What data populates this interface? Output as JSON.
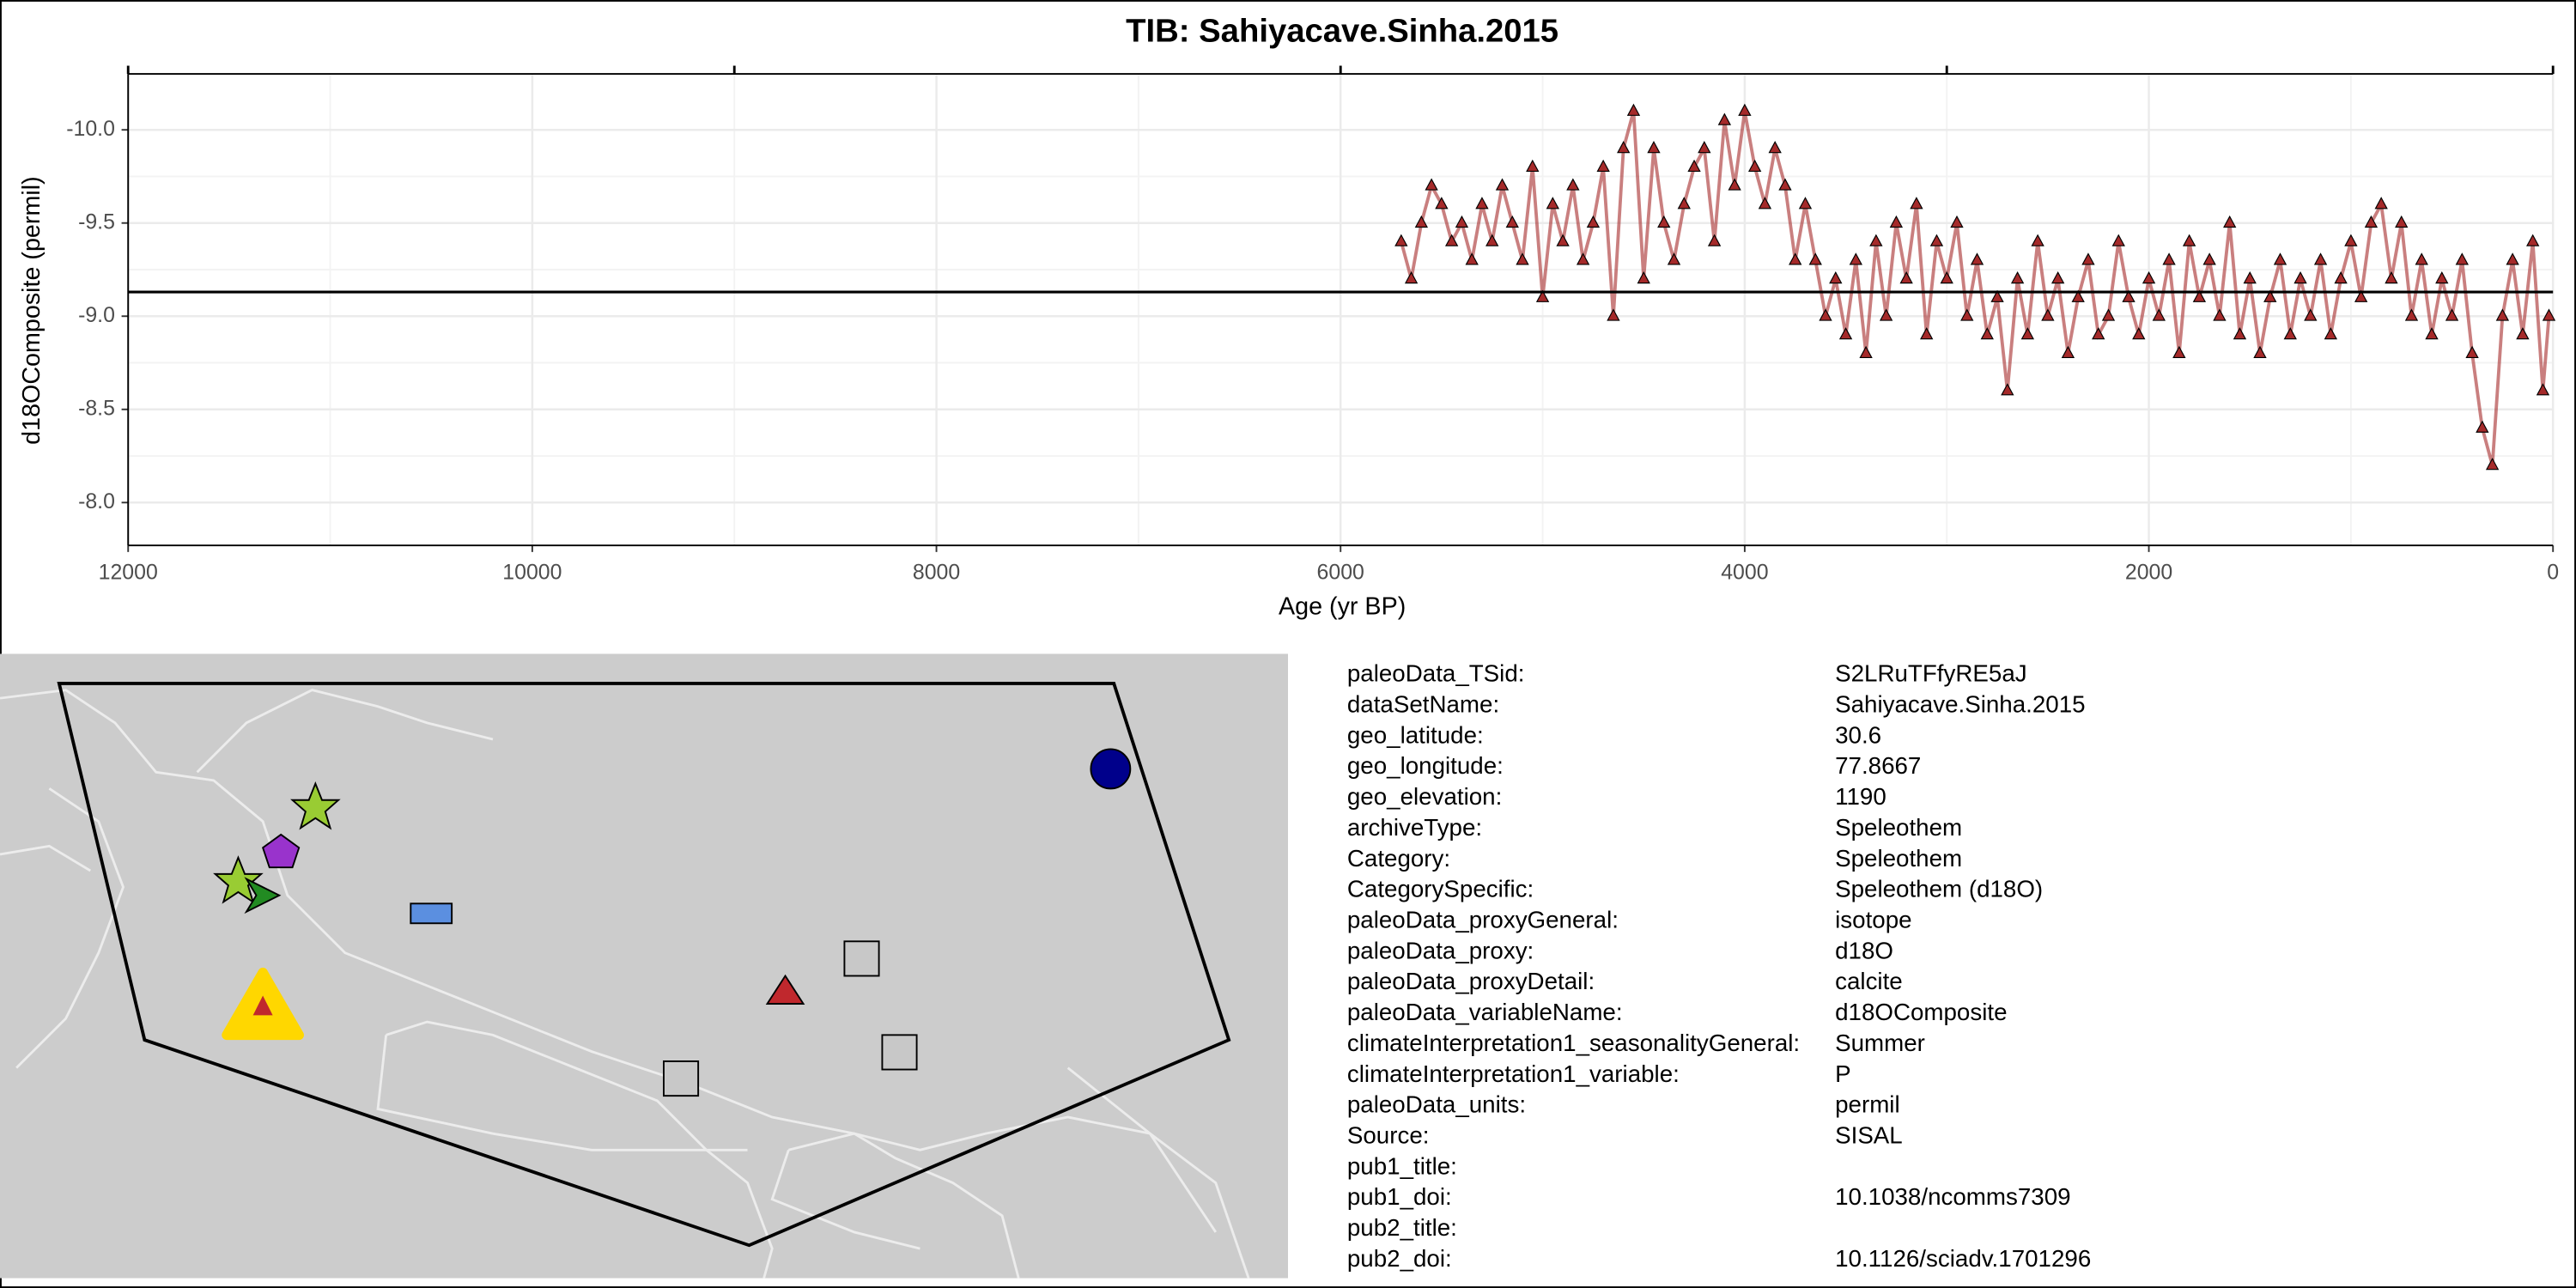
{
  "chart_data": {
    "type": "line",
    "title": "TIB: Sahiyacave.Sinha.2015",
    "x_label": "Age (yr BP)",
    "y_label": "d18OComposite (permil)",
    "xlim": [
      12000,
      0
    ],
    "xticks": [
      12000,
      10000,
      8000,
      6000,
      4000,
      2000,
      0
    ],
    "xticks_minor": [
      11000,
      9000,
      7000,
      5000,
      3000,
      1000
    ],
    "top_xticks": [
      12000,
      9000,
      6000,
      3000,
      0
    ],
    "ylim": [
      -7.77,
      -10.3
    ],
    "yticks": [
      {
        "value": -10,
        "label": "-10.0"
      },
      -9.5,
      {
        "value": -9,
        "label": "-9.0"
      },
      -8.5,
      {
        "value": -8,
        "label": "-8.0"
      }
    ],
    "yticks_minor": [
      -9.75,
      -9.25,
      -8.75,
      -8.25
    ],
    "hline": -9.13,
    "grid": true,
    "series": [
      {
        "name": "d18OComposite",
        "color": "#a52a2a",
        "x": [
          5700,
          5650,
          5600,
          5550,
          5500,
          5450,
          5400,
          5350,
          5300,
          5250,
          5200,
          5150,
          5100,
          5050,
          5000,
          4950,
          4900,
          4850,
          4800,
          4750,
          4700,
          4650,
          4600,
          4550,
          4500,
          4450,
          4400,
          4350,
          4300,
          4250,
          4200,
          4150,
          4100,
          4050,
          4000,
          3950,
          3900,
          3850,
          3800,
          3750,
          3700,
          3650,
          3600,
          3550,
          3500,
          3450,
          3400,
          3350,
          3300,
          3250,
          3200,
          3150,
          3100,
          3050,
          3000,
          2950,
          2900,
          2850,
          2800,
          2750,
          2700,
          2650,
          2600,
          2550,
          2500,
          2450,
          2400,
          2350,
          2300,
          2250,
          2200,
          2150,
          2100,
          2050,
          2000,
          1950,
          1900,
          1850,
          1800,
          1750,
          1700,
          1650,
          1600,
          1550,
          1500,
          1450,
          1400,
          1350,
          1300,
          1250,
          1200,
          1150,
          1100,
          1050,
          1000,
          950,
          900,
          850,
          800,
          750,
          700,
          650,
          600,
          550,
          500,
          450,
          400,
          350,
          300,
          250,
          200,
          150,
          100,
          50,
          20
        ],
        "values": [
          -9.4,
          -9.2,
          -9.5,
          -9.7,
          -9.6,
          -9.4,
          -9.5,
          -9.3,
          -9.6,
          -9.4,
          -9.7,
          -9.5,
          -9.3,
          -9.8,
          -9.1,
          -9.6,
          -9.4,
          -9.7,
          -9.3,
          -9.5,
          -9.8,
          -9.0,
          -9.9,
          -10.1,
          -9.2,
          -9.9,
          -9.5,
          -9.3,
          -9.6,
          -9.8,
          -9.9,
          -9.4,
          -10.05,
          -9.7,
          -10.1,
          -9.8,
          -9.6,
          -9.9,
          -9.7,
          -9.3,
          -9.6,
          -9.3,
          -9.0,
          -9.2,
          -8.9,
          -9.3,
          -8.8,
          -9.4,
          -9.0,
          -9.5,
          -9.2,
          -9.6,
          -8.9,
          -9.4,
          -9.2,
          -9.5,
          -9.0,
          -9.3,
          -8.9,
          -9.1,
          -8.6,
          -9.2,
          -8.9,
          -9.4,
          -9.0,
          -9.2,
          -8.8,
          -9.1,
          -9.3,
          -8.9,
          -9.0,
          -9.4,
          -9.1,
          -8.9,
          -9.2,
          -9.0,
          -9.3,
          -8.8,
          -9.4,
          -9.1,
          -9.3,
          -9.0,
          -9.5,
          -8.9,
          -9.2,
          -8.8,
          -9.1,
          -9.3,
          -8.9,
          -9.2,
          -9.0,
          -9.3,
          -8.9,
          -9.2,
          -9.4,
          -9.1,
          -9.5,
          -9.6,
          -9.2,
          -9.5,
          -9.0,
          -9.3,
          -8.9,
          -9.2,
          -9.0,
          -9.3,
          -8.8,
          -8.4,
          -8.2,
          -9.0,
          -9.3,
          -8.9,
          -9.4,
          -8.6,
          -9.0
        ]
      }
    ]
  },
  "metadata": {
    "rows": [
      [
        "paleoData_TSid:",
        "S2LRuTFfyRE5aJ"
      ],
      [
        "dataSetName:",
        "Sahiyacave.Sinha.2015"
      ],
      [
        "geo_latitude:",
        "30.6"
      ],
      [
        "geo_longitude:",
        "77.8667"
      ],
      [
        "geo_elevation:",
        "1190"
      ],
      [
        "archiveType:",
        "Speleothem"
      ],
      [
        "Category:",
        "Speleothem"
      ],
      [
        "CategorySpecific:",
        "Speleothem (d18O)"
      ],
      [
        "paleoData_proxyGeneral:",
        "isotope"
      ],
      [
        "paleoData_proxy:",
        "d18O"
      ],
      [
        "paleoData_proxyDetail:",
        "calcite"
      ],
      [
        "paleoData_variableName:",
        "d18OComposite"
      ],
      [
        "climateInterpretation1_seasonalityGeneral:",
        "Summer"
      ],
      [
        "climateInterpretation1_variable:",
        "P"
      ],
      [
        "paleoData_units:",
        "permil"
      ],
      [
        "Source:",
        "SISAL"
      ],
      [
        "pub1_title:"
      ],
      [
        "pub1_doi:",
        "10.1038/ncomms7309"
      ],
      [
        "pub2_title:"
      ],
      [
        "pub2_doi:",
        "10.1126/sciadv.1701296"
      ]
    ]
  }
}
